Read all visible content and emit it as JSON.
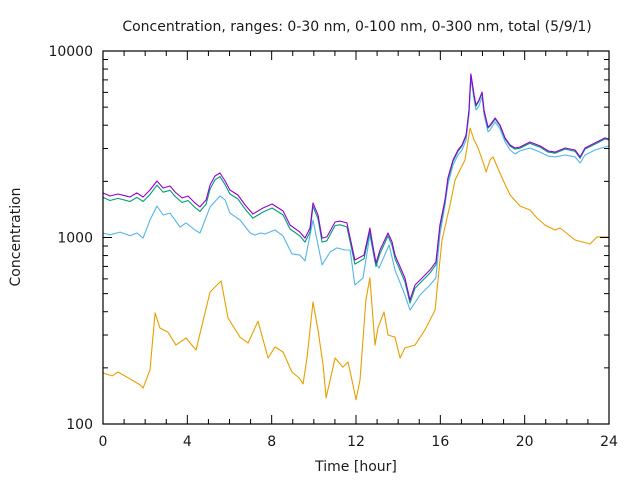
{
  "chart_data": {
    "type": "line",
    "title": "Concentration, ranges: 0-30 nm, 0-100 nm, 0-300 nm, total (5/9/1)",
    "xlabel": "Time [hour]",
    "ylabel": "Concentration",
    "xlim": [
      0,
      24
    ],
    "ylim": [
      100,
      10000
    ],
    "yscale": "log",
    "grid": false,
    "legend": "none",
    "xticks": [
      "0",
      "4",
      "8",
      "12",
      "16",
      "20",
      "24"
    ],
    "xtick_values": [
      0,
      4,
      8,
      12,
      16,
      20,
      24
    ],
    "xminor_step": 1,
    "yticks": [
      "100",
      "1000",
      "10000"
    ],
    "ytick_values": [
      100,
      1000,
      10000
    ],
    "series": [
      {
        "name": "total",
        "color": "#9400d3",
        "x": [
          0,
          0.33,
          0.71,
          1.28,
          1.61,
          1.9,
          2.23,
          2.56,
          2.85,
          3.18,
          3.42,
          3.75,
          4.03,
          4.36,
          4.6,
          4.89,
          5.08,
          5.31,
          5.55,
          5.79,
          6.02,
          6.4,
          6.74,
          7.11,
          7.59,
          8.02,
          8.54,
          8.87,
          9.34,
          9.58,
          9.82,
          9.96,
          10.2,
          10.39,
          10.62,
          11.01,
          11.24,
          11.57,
          11.95,
          12.38,
          12.66,
          12.81,
          12.95,
          13.14,
          13.52,
          13.71,
          13.85,
          14.32,
          14.56,
          14.8,
          15.04,
          15.51,
          15.79,
          15.98,
          16.22,
          16.36,
          16.6,
          16.84,
          17.03,
          17.22,
          17.36,
          17.45,
          17.6,
          17.69,
          17.83,
          17.98,
          18.07,
          18.26,
          18.36,
          18.6,
          18.83,
          19.07,
          19.31,
          19.54,
          19.78,
          20.25,
          20.73,
          21.11,
          21.44,
          21.92,
          22.39,
          22.63,
          22.86,
          23.34,
          23.81,
          24
        ],
        "values": [
          1734,
          1670,
          1711,
          1648,
          1734,
          1648,
          1798,
          2010,
          1842,
          1888,
          1754,
          1629,
          1670,
          1532,
          1459,
          1590,
          1914,
          2138,
          2218,
          2010,
          1798,
          1690,
          1494,
          1336,
          1439,
          1513,
          1387,
          1167,
          1069,
          993,
          1125,
          1532,
          1320,
          993,
          1007,
          1211,
          1225,
          1197,
          757,
          805,
          1125,
          889,
          729,
          857,
          1057,
          946,
          805,
          607,
          462,
          556,
          592,
          670,
          740,
          1167,
          1590,
          2084,
          2604,
          2946,
          3133,
          3546,
          4828,
          7536,
          5809,
          5131,
          5457,
          6024,
          4828,
          3910,
          4009,
          4373,
          4009,
          3420,
          3133,
          3020,
          3055,
          3251,
          3097,
          2912,
          2871,
          3020,
          2946,
          2704,
          3020,
          3214,
          3420,
          3373
        ]
      },
      {
        "name": "0-300 nm",
        "color": "#009e73",
        "x": [
          0,
          0.33,
          0.71,
          1.28,
          1.61,
          1.9,
          2.23,
          2.56,
          2.85,
          3.18,
          3.42,
          3.75,
          4.03,
          4.36,
          4.6,
          4.89,
          5.08,
          5.31,
          5.55,
          5.79,
          6.02,
          6.4,
          6.74,
          7.11,
          7.59,
          8.02,
          8.54,
          8.87,
          9.34,
          9.58,
          9.82,
          9.96,
          10.2,
          10.39,
          10.62,
          11.01,
          11.24,
          11.57,
          11.95,
          12.38,
          12.66,
          12.81,
          12.95,
          13.14,
          13.52,
          13.71,
          13.85,
          14.32,
          14.56,
          14.8,
          15.04,
          15.51,
          15.79,
          15.98,
          16.22,
          16.36,
          16.6,
          16.84,
          17.03,
          17.22,
          17.36,
          17.45,
          17.6,
          17.69,
          17.83,
          17.98,
          18.07,
          18.26,
          18.36,
          18.6,
          18.83,
          19.07,
          19.31,
          19.54,
          19.78,
          20.25,
          20.73,
          21.11,
          21.44,
          21.92,
          22.39,
          22.63,
          22.86,
          23.34,
          23.81,
          24
        ],
        "values": [
          1640,
          1580,
          1620,
          1560,
          1640,
          1560,
          1700,
          1910,
          1750,
          1790,
          1660,
          1540,
          1580,
          1450,
          1380,
          1510,
          1820,
          2040,
          2120,
          1920,
          1710,
          1610,
          1420,
          1270,
          1370,
          1440,
          1320,
          1110,
          1020,
          945,
          1070,
          1470,
          1260,
          945,
          960,
          1160,
          1170,
          1140,
          720,
          770,
          1080,
          850,
          700,
          820,
          1020,
          905,
          770,
          580,
          445,
          535,
          570,
          645,
          715,
          1130,
          1550,
          2040,
          2560,
          2900,
          3090,
          3500,
          4760,
          7450,
          5740,
          5060,
          5390,
          5950,
          4760,
          3860,
          3960,
          4320,
          3960,
          3370,
          3090,
          2980,
          3010,
          3200,
          3050,
          2870,
          2830,
          2980,
          2900,
          2660,
          2980,
          3170,
          3380,
          3330
        ]
      },
      {
        "name": "0-100 nm",
        "color": "#56b4e9",
        "x": [
          0,
          0.33,
          0.81,
          1.28,
          1.61,
          1.9,
          2.23,
          2.56,
          2.85,
          3.18,
          3.65,
          3.94,
          4.36,
          4.6,
          5.08,
          5.55,
          5.79,
          6.02,
          6.5,
          6.98,
          7.21,
          7.45,
          7.69,
          8.16,
          8.54,
          8.96,
          9.34,
          9.58,
          9.82,
          9.96,
          10.2,
          10.39,
          10.77,
          11.1,
          11.48,
          11.72,
          11.95,
          12.33,
          12.66,
          12.9,
          13.09,
          13.57,
          13.85,
          14.32,
          14.56,
          15.04,
          15.51,
          15.79,
          15.98,
          16.22,
          16.36,
          16.6,
          16.84,
          17.03,
          17.22,
          17.36,
          17.45,
          17.6,
          17.69,
          17.83,
          17.98,
          18.07,
          18.26,
          18.36,
          18.6,
          18.83,
          19.07,
          19.31,
          19.54,
          19.78,
          20.25,
          20.73,
          21.11,
          21.44,
          21.92,
          22.39,
          22.63,
          22.86,
          23.34,
          23.81,
          24
        ],
        "values": [
          1057,
          1034,
          1069,
          1022,
          1057,
          993,
          1241,
          1476,
          1320,
          1352,
          1138,
          1197,
          1097,
          1057,
          1459,
          1670,
          1590,
          1352,
          1241,
          1057,
          1030,
          1057,
          1046,
          1097,
          1018,
          817,
          805,
          749,
          1030,
          1241,
          912,
          713,
          836,
          879,
          857,
          857,
          556,
          607,
          1030,
          740,
          685,
          912,
          670,
          492,
          408,
          492,
          556,
          607,
          1034,
          1494,
          1914,
          2449,
          2768,
          2946,
          3334,
          4547,
          7174,
          5457,
          4828,
          5072,
          5673,
          4547,
          3689,
          3779,
          4169,
          3824,
          3256,
          2946,
          2805,
          2912,
          3020,
          2871,
          2733,
          2704,
          2768,
          2704,
          2508,
          2768,
          2946,
          3055,
          3097
        ]
      },
      {
        "name": "0-30 nm",
        "color": "#e69f00",
        "x": [
          0,
          0.43,
          0.71,
          1.19,
          1.76,
          1.9,
          2.23,
          2.47,
          2.7,
          3.08,
          3.46,
          3.94,
          4.41,
          5.08,
          5.6,
          5.93,
          6.5,
          6.88,
          7.35,
          7.83,
          8.16,
          8.54,
          8.96,
          9.3,
          9.49,
          9.68,
          9.96,
          10.2,
          10.44,
          10.58,
          11.01,
          11.38,
          11.62,
          11.86,
          12.0,
          12.19,
          12.47,
          12.66,
          12.9,
          13.04,
          13.33,
          13.52,
          13.85,
          14.09,
          14.32,
          14.8,
          15.27,
          15.75,
          15.89,
          16.08,
          16.46,
          16.7,
          16.93,
          17.17,
          17.41,
          17.6,
          17.79,
          18.07,
          18.17,
          18.36,
          18.5,
          18.97,
          19.31,
          19.78,
          20.25,
          20.58,
          20.96,
          21.44,
          21.68,
          22.39,
          23.1,
          23.43,
          23.81,
          24
        ],
        "values": [
          188,
          181,
          190,
          177,
          162,
          156,
          195,
          394,
          327,
          311,
          265,
          289,
          249,
          510,
          585,
          370,
          292,
          272,
          356,
          226,
          259,
          243,
          190,
          177,
          164,
          229,
          451,
          319,
          207,
          138,
          226,
          202,
          215,
          162,
          135,
          172,
          462,
          607,
          265,
          327,
          399,
          300,
          292,
          226,
          256,
          265,
          319,
          408,
          592,
          970,
          1494,
          2033,
          2301,
          2604,
          3866,
          3334,
          3020,
          2449,
          2244,
          2604,
          2704,
          2033,
          1690,
          1476,
          1404,
          1273,
          1167,
          1097,
          1125,
          970,
          923,
          1007,
          1007,
          1007
        ]
      }
    ]
  }
}
